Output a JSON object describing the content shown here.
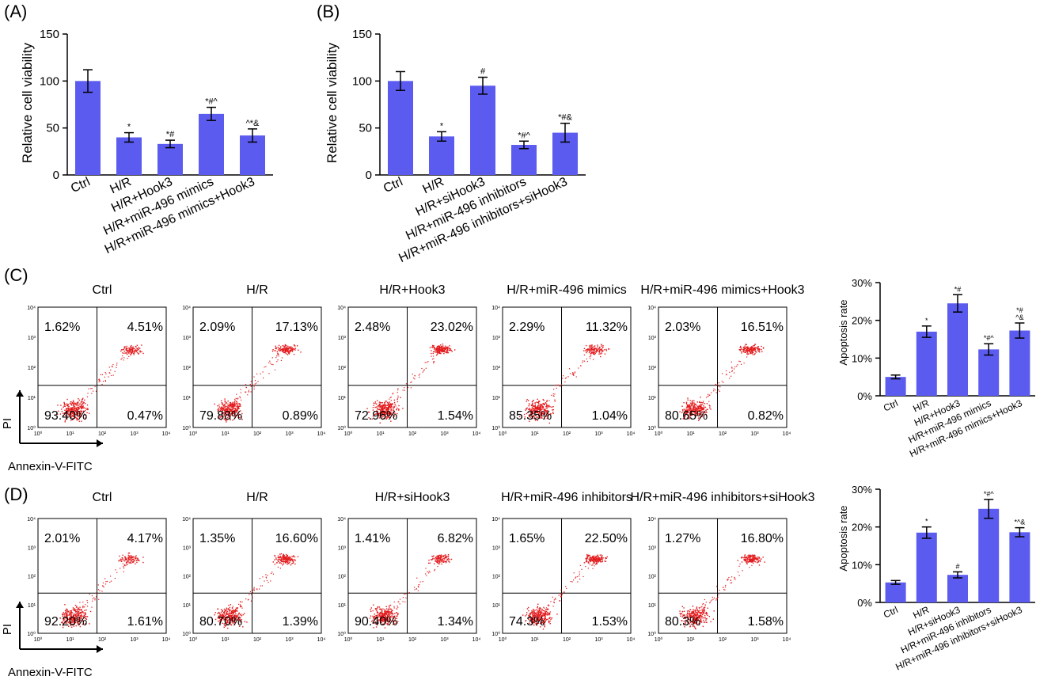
{
  "chart_data": [
    {
      "panel": "(A)",
      "type": "bar",
      "ylabel": "Relative cell viability",
      "ylim": [
        0,
        150
      ],
      "yticks": [
        "0",
        "50",
        "100",
        "150"
      ],
      "categories": [
        "Ctrl",
        "H/R",
        "H/R+Hook3",
        "H/R+miR-496 mimics",
        "H/R+miR-496 mimics+Hook3"
      ],
      "values": [
        100,
        40,
        33,
        65,
        42
      ],
      "errors": [
        12,
        5,
        4,
        7,
        7
      ],
      "annotations": [
        "",
        "*",
        "*#",
        "*#^",
        "^*&"
      ],
      "bar_color": "#5b5bf0"
    },
    {
      "panel": "(B)",
      "type": "bar",
      "ylabel": "Relative cell viability",
      "ylim": [
        0,
        150
      ],
      "yticks": [
        "0",
        "50",
        "100",
        "150"
      ],
      "categories": [
        "Ctrl",
        "H/R",
        "H/R+siHook3",
        "H/R+miR-496 inhibitors",
        "H/R+miR-496 inhibitors+siHook3"
      ],
      "values": [
        100,
        41,
        95,
        32,
        45
      ],
      "errors": [
        10,
        5,
        9,
        4,
        10
      ],
      "annotations": [
        "",
        "*",
        "#",
        "*#^",
        "*#&"
      ],
      "bar_color": "#5b5bf0"
    },
    {
      "panel": "(C) chart",
      "type": "bar",
      "ylabel": "Apoptosis rate",
      "ylim": [
        0,
        30
      ],
      "yticks": [
        "0%",
        "10%",
        "20%",
        "30%"
      ],
      "categories": [
        "Ctrl",
        "H/R",
        "H/R+Hook3",
        "H/R+miR-496 mimics",
        "H/R+miR-496 mimics+Hook3"
      ],
      "values": [
        5,
        17,
        24.5,
        12.3,
        17.3
      ],
      "errors": [
        0.5,
        1.5,
        2.3,
        1.5,
        2.0
      ],
      "annotations": [
        "",
        "*",
        "*#",
        "*#^",
        "*#\n^&"
      ],
      "bar_color": "#5b5bf0"
    },
    {
      "panel": "(D) chart",
      "type": "bar",
      "ylabel": "Apoptosis rate",
      "ylim": [
        0,
        30
      ],
      "yticks": [
        "0%",
        "10%",
        "20%",
        "30%"
      ],
      "categories": [
        "Ctrl",
        "H/R",
        "H/R+siHook3",
        "H/R+miR-496 inhibitors",
        "H/R+miR-496 inhibitors+siHook3"
      ],
      "values": [
        5.3,
        18.5,
        7.3,
        24.8,
        18.6
      ],
      "errors": [
        0.5,
        1.5,
        0.8,
        2.5,
        1.2
      ],
      "annotations": [
        "",
        "*",
        "#",
        "*#^",
        "*^&"
      ],
      "bar_color": "#5b5bf0"
    }
  ],
  "flow": {
    "c_panel_label": "(C)",
    "d_panel_label": "(D)",
    "axis_y_label": "PI",
    "axis_x_label": "Annexin-V-FITC",
    "tick_labels": [
      "10⁰",
      "10¹",
      "10²",
      "10³",
      "10⁴"
    ],
    "rows": [
      {
        "id": "C",
        "plots": [
          {
            "title": "Ctrl",
            "q": [
              "1.62%",
              "4.51%",
              "93.40%",
              "0.47%"
            ],
            "ur": 0.35
          },
          {
            "title": "H/R",
            "q": [
              "2.09%",
              "17.13%",
              "79.88%",
              "0.89%"
            ],
            "ur": 0.55
          },
          {
            "title": "H/R+Hook3",
            "q": [
              "2.48%",
              "23.02%",
              "72.96%",
              "1.54%"
            ],
            "ur": 0.7
          },
          {
            "title": "H/R+miR-496 mimics",
            "q": [
              "2.29%",
              "11.32%",
              "85.35%",
              "1.04%"
            ],
            "ur": 0.45
          },
          {
            "title": "H/R+miR-496 mimics+Hook3",
            "q": [
              "2.03%",
              "16.51%",
              "80.65%",
              "0.82%"
            ],
            "ur": 0.6
          }
        ]
      },
      {
        "id": "D",
        "plots": [
          {
            "title": "Ctrl",
            "q": [
              "2.01%",
              "4.17%",
              "92.20%",
              "1.61%"
            ],
            "ur": 0.3
          },
          {
            "title": "H/R",
            "q": [
              "1.35%",
              "16.60%",
              "80.70%",
              "1.39%"
            ],
            "ur": 0.6
          },
          {
            "title": "H/R+siHook3",
            "q": [
              "1.41%",
              "6.82%",
              "90.40%",
              "1.34%"
            ],
            "ur": 0.4
          },
          {
            "title": "H/R+miR-496 inhibitors",
            "q": [
              "1.65%",
              "22.50%",
              "74.3%",
              "1.53%"
            ],
            "ur": 0.7
          },
          {
            "title": "H/R+miR-496 inhibitors+siHook3",
            "q": [
              "1.27%",
              "16.80%",
              "80.3%",
              "1.58%"
            ],
            "ur": 0.6
          }
        ]
      }
    ]
  },
  "panel_labels": {
    "a": "(A)",
    "b": "(B)"
  }
}
